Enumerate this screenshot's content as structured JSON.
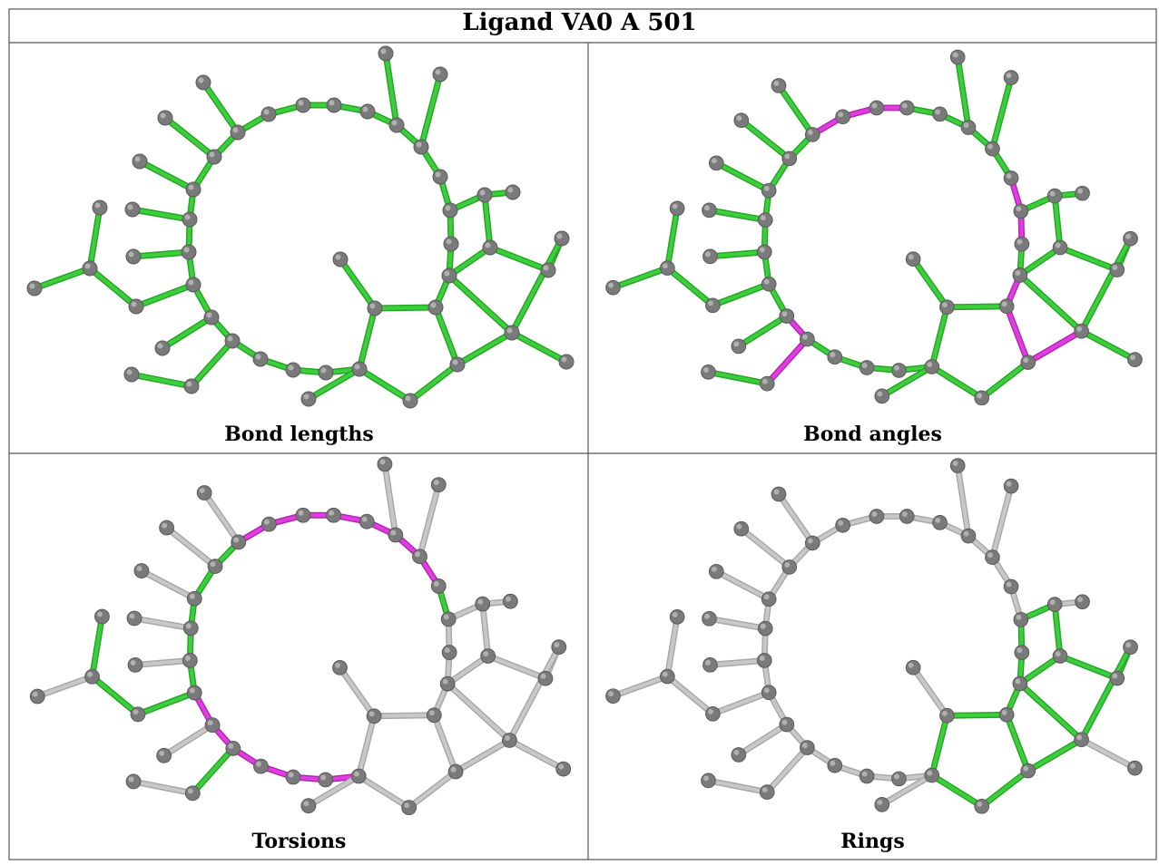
{
  "title": "Ligand VA0 A 501",
  "panels": [
    {
      "caption": "Bond lengths",
      "scheme": "all_green"
    },
    {
      "caption": "Bond angles",
      "scheme": "angles"
    },
    {
      "caption": "Torsions",
      "scheme": "torsions"
    },
    {
      "caption": "Rings",
      "scheme": "rings"
    }
  ],
  "colors": {
    "green": "#3ccf3c",
    "magenta": "#e23ce2",
    "grey": "#c8c8c8",
    "atom": "#7a7a7a",
    "atom_light": "#b0b0b0",
    "border": "#555555"
  }
}
